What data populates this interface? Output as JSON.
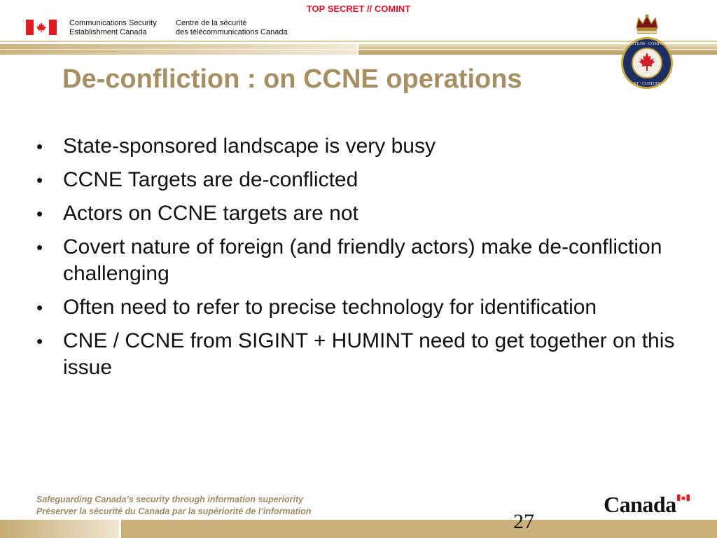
{
  "classification": "TOP SECRET // COMINT",
  "header": {
    "org_en_line1": "Communications Security",
    "org_en_line2": "Establishment Canada",
    "org_fr_line1": "Centre de la sécurité",
    "org_fr_line2": "des télécommunications Canada",
    "crest_text": "NUNTIUM · COMPONE · ET · CUSTODI"
  },
  "slide": {
    "title": "De-confliction : on CCNE operations",
    "bullets": [
      "State-sponsored landscape is very busy",
      "CCNE Targets are de-conflicted",
      "Actors on CCNE targets are not",
      "Covert nature of foreign (and friendly actors) make de-confliction challenging",
      "Often need to refer to precise technology for identification",
      "CNE / CCNE from SIGINT + HUMINT need to get together on this issue"
    ],
    "bullet_glyph": "•"
  },
  "footer": {
    "tagline_en": "Safeguarding Canada’s security through information superiority",
    "tagline_fr": "Préserver la sécurité du Canada par la supériorité de l’information",
    "page_number": "27",
    "wordmark": "Canada"
  },
  "colors": {
    "classification": "#e0102a",
    "title": "#a58f63",
    "band": "#c4ab72",
    "flag_red": "#e31b23"
  }
}
